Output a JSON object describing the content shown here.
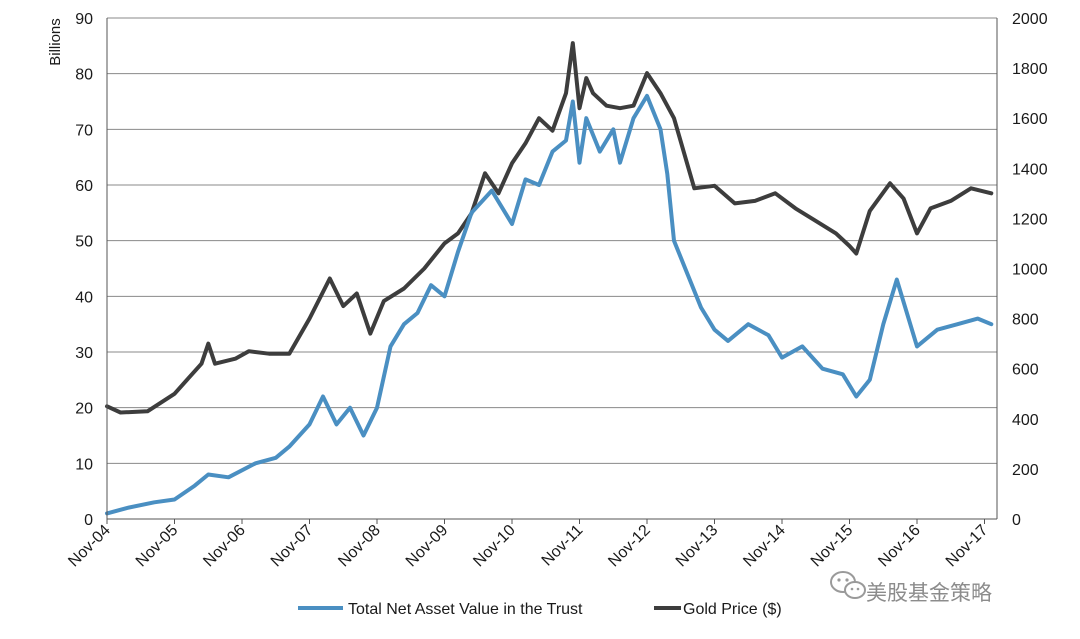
{
  "chart_data": {
    "type": "line",
    "title": "",
    "xlabel": "",
    "ylabel": "Billions",
    "y2label": "",
    "categories": [
      "Nov-04",
      "Nov-05",
      "Nov-06",
      "Nov-07",
      "Nov-08",
      "Nov-09",
      "Nov-10",
      "Nov-11",
      "Nov-12",
      "Nov-13",
      "Nov-14",
      "Nov-15",
      "Nov-16",
      "Nov-17"
    ],
    "ylim": [
      0,
      90
    ],
    "y_ticks": [
      0,
      10,
      20,
      30,
      40,
      50,
      60,
      70,
      80,
      90
    ],
    "y2lim": [
      0,
      2000
    ],
    "y2_ticks": [
      0,
      200,
      400,
      600,
      800,
      1000,
      1200,
      1400,
      1600,
      1800,
      2000
    ],
    "grid": true,
    "legend_position": "bottom",
    "series": [
      {
        "name": "Total Net Asset Value in the Trust",
        "axis": "left",
        "color": "#4a8fc2",
        "x": [
          0,
          0.3,
          0.7,
          1.0,
          1.3,
          1.5,
          1.8,
          2.2,
          2.5,
          2.7,
          3.0,
          3.2,
          3.4,
          3.6,
          3.8,
          4.0,
          4.2,
          4.4,
          4.6,
          4.8,
          5.0,
          5.2,
          5.4,
          5.7,
          6.0,
          6.2,
          6.4,
          6.6,
          6.8,
          6.9,
          7.0,
          7.1,
          7.3,
          7.5,
          7.6,
          7.8,
          8.0,
          8.2,
          8.3,
          8.4,
          8.6,
          8.8,
          9.0,
          9.2,
          9.5,
          9.8,
          10.0,
          10.3,
          10.6,
          10.9,
          11.1,
          11.3,
          11.5,
          11.7,
          12.0,
          12.3,
          12.6,
          12.9,
          13.1
        ],
        "values": [
          1,
          2,
          3,
          3.5,
          6,
          8,
          7.5,
          10,
          11,
          13,
          17,
          22,
          17,
          20,
          15,
          20,
          31,
          35,
          37,
          42,
          40,
          48,
          55,
          59,
          53,
          61,
          60,
          66,
          68,
          75,
          64,
          72,
          66,
          70,
          64,
          72,
          76,
          70,
          62,
          50,
          44,
          38,
          34,
          32,
          35,
          33,
          29,
          31,
          27,
          26,
          22,
          25,
          35,
          43,
          31,
          34,
          35,
          36,
          35
        ]
      },
      {
        "name": "Gold Price ($)",
        "axis": "right",
        "color": "#3d3d3d",
        "x": [
          0,
          0.2,
          0.6,
          1.0,
          1.2,
          1.4,
          1.5,
          1.6,
          1.9,
          2.1,
          2.4,
          2.7,
          3.0,
          3.3,
          3.5,
          3.7,
          3.9,
          4.1,
          4.4,
          4.7,
          5.0,
          5.2,
          5.4,
          5.6,
          5.8,
          6.0,
          6.2,
          6.4,
          6.6,
          6.8,
          6.9,
          7.0,
          7.1,
          7.2,
          7.4,
          7.6,
          7.8,
          8.0,
          8.2,
          8.4,
          8.7,
          9.0,
          9.3,
          9.6,
          9.9,
          10.2,
          10.5,
          10.8,
          11.0,
          11.1,
          11.3,
          11.6,
          11.8,
          12.0,
          12.2,
          12.5,
          12.8,
          13.1
        ],
        "values": [
          450,
          425,
          430,
          500,
          560,
          620,
          700,
          620,
          640,
          670,
          660,
          660,
          800,
          960,
          850,
          900,
          740,
          870,
          920,
          1000,
          1100,
          1140,
          1220,
          1380,
          1300,
          1420,
          1500,
          1600,
          1550,
          1700,
          1900,
          1640,
          1760,
          1700,
          1650,
          1640,
          1650,
          1780,
          1700,
          1600,
          1320,
          1330,
          1260,
          1270,
          1300,
          1240,
          1190,
          1140,
          1090,
          1060,
          1230,
          1340,
          1280,
          1140,
          1240,
          1270,
          1320,
          1300
        ]
      }
    ]
  },
  "watermark": {
    "icon": "wechat-icon",
    "text": "美股基金策略"
  }
}
